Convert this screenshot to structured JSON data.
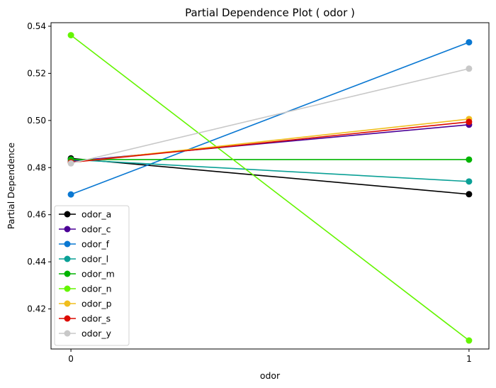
{
  "chart_data": {
    "type": "line",
    "title": "Partial Dependence Plot ( odor )",
    "xlabel": "odor",
    "ylabel": "Partial Dependence",
    "x": [
      0,
      1
    ],
    "xticks": [
      "0",
      "1"
    ],
    "xlim": [
      -0.05,
      1.05
    ],
    "ylim": [
      0.403,
      0.5415
    ],
    "yticks": [
      0.42,
      0.44,
      0.46,
      0.48,
      0.5,
      0.52,
      0.54
    ],
    "ytick_labels": [
      "0.42",
      "0.44",
      "0.46",
      "0.48",
      "0.50",
      "0.52",
      "0.54"
    ],
    "grid": false,
    "legend": "lower-left",
    "series": [
      {
        "name": "odor_a",
        "color": "#000000",
        "values": [
          0.4839,
          0.4687
        ]
      },
      {
        "name": "odor_c",
        "color": "#4b0096",
        "values": [
          0.4827,
          0.4982
        ]
      },
      {
        "name": "odor_f",
        "color": "#0a78d2",
        "values": [
          0.4686,
          0.5332
        ]
      },
      {
        "name": "odor_l",
        "color": "#0aa096",
        "values": [
          0.4834,
          0.4741
        ]
      },
      {
        "name": "odor_m",
        "color": "#00b400",
        "values": [
          0.4834,
          0.4834
        ]
      },
      {
        "name": "odor_n",
        "color": "#64f500",
        "values": [
          0.5362,
          0.4066
        ]
      },
      {
        "name": "odor_p",
        "color": "#f0be1e",
        "values": [
          0.4822,
          0.5006
        ]
      },
      {
        "name": "odor_s",
        "color": "#dc0a00",
        "values": [
          0.4822,
          0.4994
        ]
      },
      {
        "name": "odor_y",
        "color": "#c8c8c8",
        "values": [
          0.4818,
          0.522
        ]
      }
    ]
  }
}
